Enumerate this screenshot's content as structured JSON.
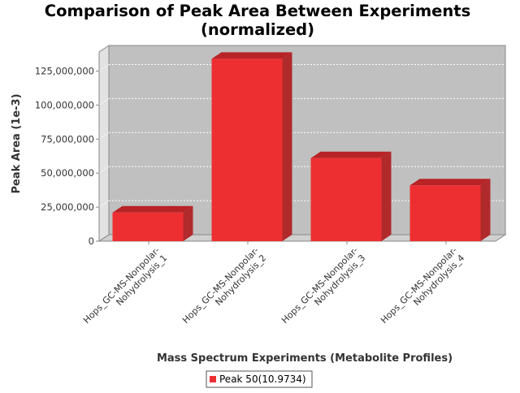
{
  "chart_data": {
    "type": "bar",
    "title_lines": [
      "Comparison of Peak Area Between Experiments",
      "(normalized)"
    ],
    "xlabel": "Mass Spectrum Experiments (Metabolite Profiles)",
    "ylabel": "Peak Area (1e-3)",
    "categories": [
      [
        "Hops_GC-MS-Nonpolar-",
        "Nohydrolysis_1"
      ],
      [
        "Hops_GC-MS-Nonpolar-",
        "Nohydrolysis_2"
      ],
      [
        "Hops_GC-MS-Nonpolar-",
        "Nohydrolysis_3"
      ],
      [
        "Hops_GC-MS-Nonpolar-",
        "Nohydrolysis_4"
      ]
    ],
    "series": [
      {
        "name": "Peak 50(10.9734)",
        "color": "#ee2f31",
        "values": [
          21000000,
          134000000,
          61000000,
          41000000
        ]
      }
    ],
    "yticks": [
      "0",
      "25,000,000",
      "50,000,000",
      "75,000,000",
      "100,000,000",
      "125,000,000"
    ],
    "ytick_values": [
      0,
      25000000,
      50000000,
      75000000,
      100000000,
      125000000
    ],
    "ylim": [
      0,
      139000000
    ],
    "grid": true,
    "legend_position": "bottom",
    "plot_background": "#c0c0c0",
    "bar_color": "#ee2f31"
  }
}
